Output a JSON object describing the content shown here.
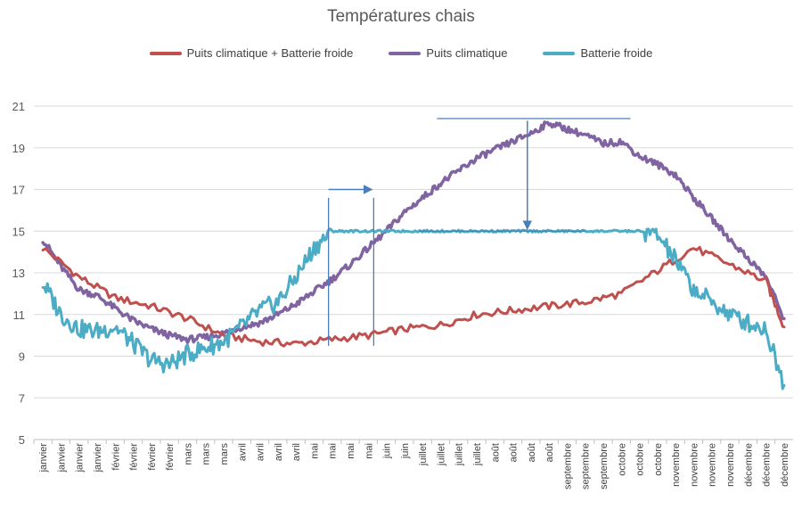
{
  "chart_data": {
    "type": "line",
    "title": "Températures chais",
    "xlabel": "",
    "ylabel": "",
    "ylim": [
      5,
      21
    ],
    "yticks": [
      5,
      7,
      9,
      11,
      13,
      15,
      17,
      19,
      21
    ],
    "grid": true,
    "legend_position": "top",
    "x_tick_labels": [
      "janvier",
      "janvier",
      "janvier",
      "janvier",
      "février",
      "février",
      "février",
      "février",
      "mars",
      "mars",
      "mars",
      "avril",
      "avril",
      "avril",
      "avril",
      "mai",
      "mai",
      "mai",
      "mai",
      "juin",
      "juin",
      "juillet",
      "juillet",
      "juillet",
      "juillet",
      "août",
      "août",
      "août",
      "août",
      "septembre",
      "septembre",
      "septembre",
      "octobre",
      "octobre",
      "octobre",
      "novembre",
      "novembre",
      "novembre",
      "novembre",
      "décembre",
      "décembre",
      "décembre"
    ],
    "series": [
      {
        "name": "Puits climatique + Batterie froide",
        "color": "#c0504d",
        "x": [
          0,
          2,
          4,
          6,
          8,
          10,
          12,
          14,
          16,
          18,
          20,
          22,
          24,
          26,
          28,
          30,
          32,
          34,
          36,
          38,
          40,
          41
        ],
        "values": [
          14.2,
          12.8,
          11.8,
          11.4,
          10.8,
          10.0,
          9.7,
          9.6,
          9.8,
          10.0,
          10.3,
          10.5,
          11.0,
          11.2,
          11.4,
          11.6,
          12.0,
          13.1,
          14.2,
          13.4,
          12.6,
          10.4
        ]
      },
      {
        "name": "Puits climatique",
        "color": "#8064a2",
        "x": [
          0,
          1,
          2,
          3,
          4,
          5,
          6,
          7,
          8,
          9,
          10,
          11,
          12,
          13,
          14,
          15,
          16,
          17,
          18,
          19,
          20,
          21,
          22,
          23,
          24,
          25,
          26,
          27,
          28,
          29,
          30,
          31,
          32,
          33,
          34,
          35,
          36,
          37,
          38,
          39,
          40,
          41
        ],
        "values": [
          14.6,
          13.3,
          12.2,
          11.9,
          11.3,
          10.7,
          10.3,
          10.0,
          9.8,
          9.9,
          10.1,
          10.4,
          10.6,
          11.0,
          11.5,
          12.1,
          12.7,
          13.4,
          14.2,
          15.0,
          15.9,
          16.6,
          17.3,
          17.9,
          18.5,
          18.9,
          19.3,
          19.7,
          20.2,
          19.9,
          19.6,
          19.2,
          19.3,
          18.6,
          18.2,
          17.7,
          16.6,
          15.6,
          14.6,
          13.7,
          12.8,
          10.8
        ]
      },
      {
        "name": "Batterie froide",
        "color": "#4bacc6",
        "x": [
          0,
          1,
          2,
          3,
          4,
          5,
          6,
          7,
          8,
          9,
          10,
          11,
          12,
          13,
          14,
          15,
          16,
          17,
          18,
          19,
          20,
          21,
          22,
          23,
          24,
          25,
          26,
          27,
          28,
          29,
          30,
          31,
          32,
          33,
          34,
          35,
          36,
          37,
          38,
          39,
          40,
          41
        ],
        "values": [
          12.5,
          11.0,
          10.3,
          10.2,
          10.4,
          9.6,
          8.8,
          8.6,
          9.1,
          9.4,
          9.7,
          10.4,
          11.2,
          11.6,
          12.8,
          14.2,
          15.0,
          15.0,
          15.0,
          15.0,
          15.0,
          15.0,
          15.0,
          15.0,
          15.0,
          15.0,
          15.0,
          15.0,
          15.0,
          15.0,
          15.0,
          15.0,
          15.0,
          15.0,
          14.8,
          13.6,
          12.2,
          11.6,
          11.0,
          10.6,
          10.3,
          7.6
        ]
      }
    ],
    "annotations": [
      {
        "kind": "vline",
        "x": 15.8,
        "y": [
          9.5,
          16.6
        ]
      },
      {
        "kind": "vline",
        "x": 18.3,
        "y": [
          9.5,
          16.6
        ]
      },
      {
        "kind": "arrow",
        "x": [
          15.8,
          18.2
        ],
        "y": [
          17.0,
          17.0
        ]
      },
      {
        "kind": "hline",
        "x": [
          21.8,
          32.5
        ],
        "y": [
          20.4,
          20.4
        ]
      },
      {
        "kind": "arrow",
        "x": [
          26.8,
          26.8
        ],
        "y": [
          20.3,
          15.1
        ]
      },
      {
        "kind": "hline",
        "x": [
          20.8,
          30.0
        ],
        "y": [
          15.0,
          15.0
        ]
      }
    ]
  }
}
